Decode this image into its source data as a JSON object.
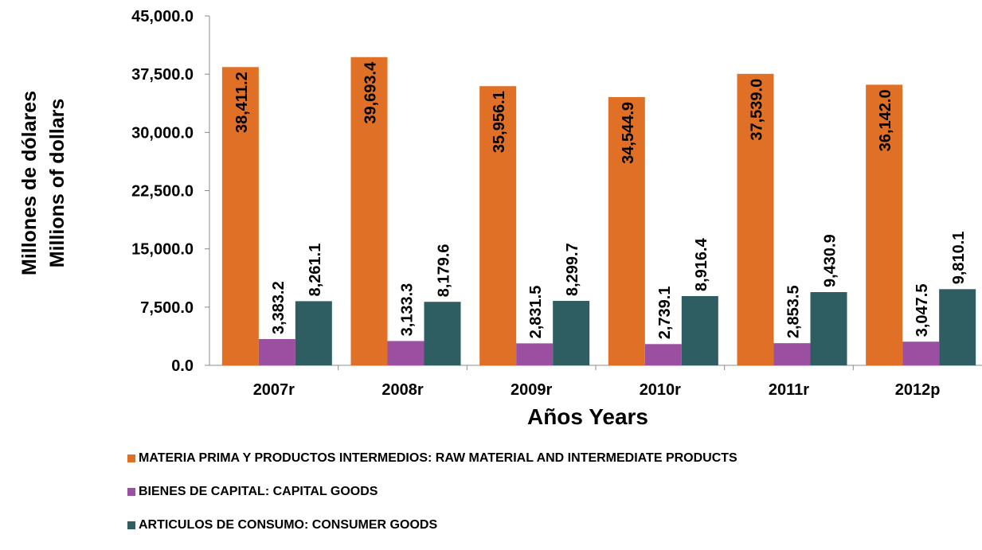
{
  "chart_data": {
    "type": "bar",
    "title": "",
    "xlabel": "Años Years",
    "ylabel_line1": "Millones de dólares",
    "ylabel_line2": "Millions of dollars",
    "categories": [
      "2007r",
      "2008r",
      "2009r",
      "2010r",
      "2011r",
      "2012p"
    ],
    "ylim": [
      0,
      45000
    ],
    "yticks": [
      0,
      7500,
      15000,
      22500,
      30000,
      37500,
      45000
    ],
    "ytick_labels": [
      "0.0",
      "7,500.0",
      "15,000.0",
      "22,500.0",
      "30,000.0",
      "37,500.0",
      "45,000.0"
    ],
    "grid": false,
    "legend_position": "bottom",
    "series": [
      {
        "name": "MATERIA PRIMA Y PRODUCTOS INTERMEDIOS: RAW MATERIAL AND INTERMEDIATE PRODUCTS",
        "color": "#E07026",
        "values": [
          38411.2,
          39693.4,
          35956.1,
          34544.9,
          37539.0,
          36142.0
        ],
        "labels": [
          "38,411.2",
          "39,693.4",
          "35,956.1",
          "34,544.9",
          "37,539.0",
          "36,142.0"
        ]
      },
      {
        "name": "BIENES DE CAPITAL: CAPITAL GOODS",
        "color": "#9B4FA0",
        "values": [
          3383.2,
          3133.3,
          2831.5,
          2739.1,
          2853.5,
          3047.5
        ],
        "labels": [
          "3,383.2",
          "3,133.3",
          "2,831.5",
          "2,739.1",
          "2,853.5",
          "3,047.5"
        ]
      },
      {
        "name": "ARTICULOS DE CONSUMO: CONSUMER GOODS",
        "color": "#2E5E62",
        "values": [
          8261.1,
          8179.6,
          8299.7,
          8916.4,
          9430.9,
          9810.1
        ],
        "labels": [
          "8,261.1",
          "8,179.6",
          "8,299.7",
          "8,916.4",
          "9,430.9",
          "9,810.1"
        ]
      }
    ]
  }
}
